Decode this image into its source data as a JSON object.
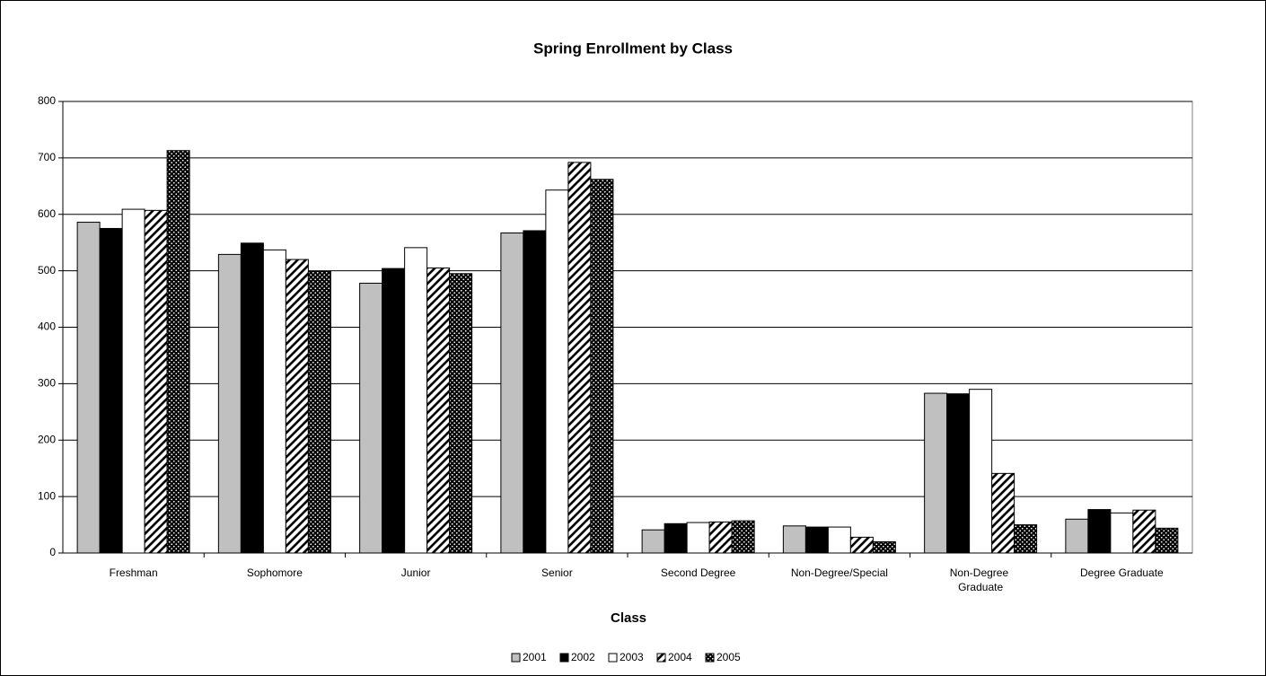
{
  "chart_data": {
    "type": "bar",
    "title": "Spring Enrollment by Class",
    "x_label": "Class",
    "categories": [
      "Freshman",
      "Sophomore",
      "Junior",
      "Senior",
      "Second Degree",
      "Non-Degree/Special",
      "Non-Degree Graduate",
      "Degree Graduate"
    ],
    "series": [
      {
        "name": "2001",
        "color": "#c0c0c0",
        "values": [
          586,
          529,
          478,
          567,
          41,
          48,
          283,
          60
        ]
      },
      {
        "name": "2002",
        "color": "#000000",
        "values": [
          575,
          549,
          504,
          571,
          52,
          46,
          282,
          77
        ]
      },
      {
        "name": "2003",
        "color": "#ffffff",
        "values": [
          609,
          537,
          541,
          643,
          54,
          46,
          290,
          71
        ]
      },
      {
        "name": "2004",
        "color": "#000000",
        "pattern": "diagonal",
        "values": [
          607,
          520,
          505,
          692,
          55,
          28,
          141,
          76
        ]
      },
      {
        "name": "2005",
        "color": "#000000",
        "pattern": "dots",
        "values": [
          713,
          499,
          495,
          662,
          57,
          20,
          50,
          44
        ]
      }
    ],
    "ylim": [
      0,
      800
    ],
    "yticks": [
      0,
      100,
      200,
      300,
      400,
      500,
      600,
      700,
      800
    ],
    "grid": true,
    "legend": "bottom"
  }
}
